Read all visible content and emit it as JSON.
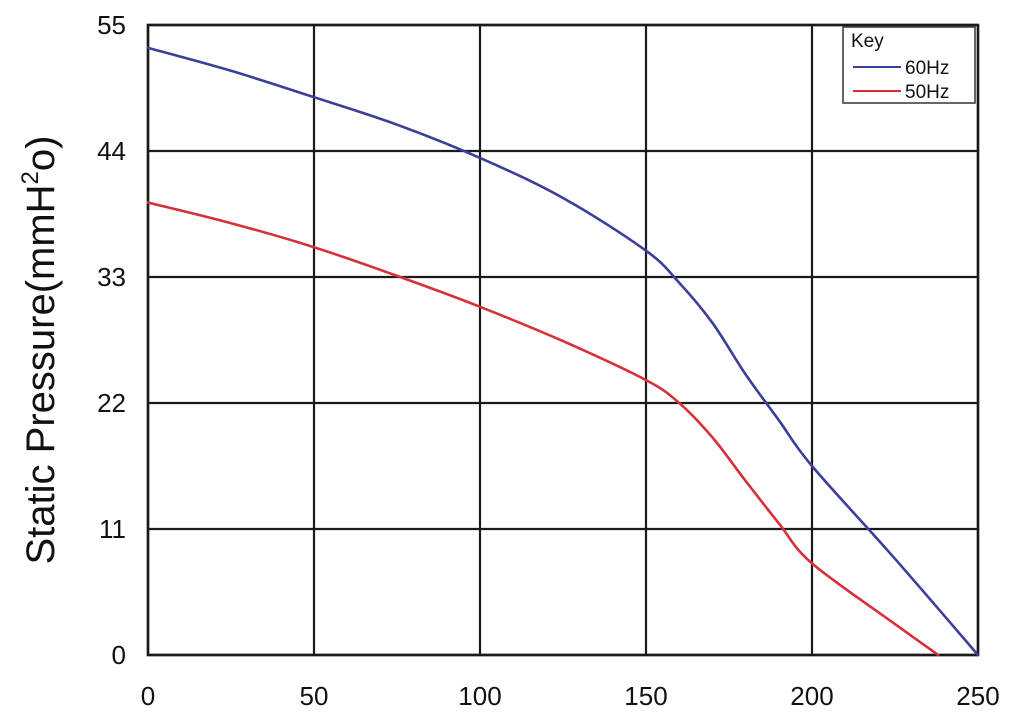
{
  "chart_data": {
    "type": "line",
    "ylabel_main": "Static Pressure(mmH",
    "ylabel_sup": "2",
    "ylabel_tail": "o)",
    "xlabel": "",
    "xlim": [
      0,
      250
    ],
    "ylim": [
      0,
      55
    ],
    "x_ticks": [
      0,
      50,
      100,
      150,
      200,
      250
    ],
    "y_ticks": [
      0,
      11,
      22,
      33,
      44,
      55
    ],
    "grid": true,
    "legend": {
      "title": "Key",
      "placement": "top-right"
    },
    "series": [
      {
        "name": "60Hz",
        "color": "#3a3f9a",
        "points": [
          [
            0,
            53
          ],
          [
            25,
            51
          ],
          [
            50,
            48.7
          ],
          [
            75,
            46.3
          ],
          [
            100,
            43.4
          ],
          [
            125,
            39.9
          ],
          [
            150,
            35.3
          ],
          [
            160,
            32.5
          ],
          [
            170,
            29
          ],
          [
            180,
            24.5
          ],
          [
            190,
            20.5
          ],
          [
            200,
            16.5
          ],
          [
            225,
            8.4
          ],
          [
            250,
            0
          ]
        ]
      },
      {
        "name": "50Hz",
        "color": "#d8303a",
        "points": [
          [
            0,
            39.5
          ],
          [
            25,
            37.7
          ],
          [
            50,
            35.6
          ],
          [
            75,
            33.1
          ],
          [
            100,
            30.4
          ],
          [
            125,
            27.4
          ],
          [
            150,
            24
          ],
          [
            160,
            22
          ],
          [
            170,
            19
          ],
          [
            180,
            15.2
          ],
          [
            190,
            11.5
          ],
          [
            200,
            8
          ],
          [
            225,
            2.7
          ],
          [
            238,
            0
          ]
        ]
      }
    ]
  }
}
